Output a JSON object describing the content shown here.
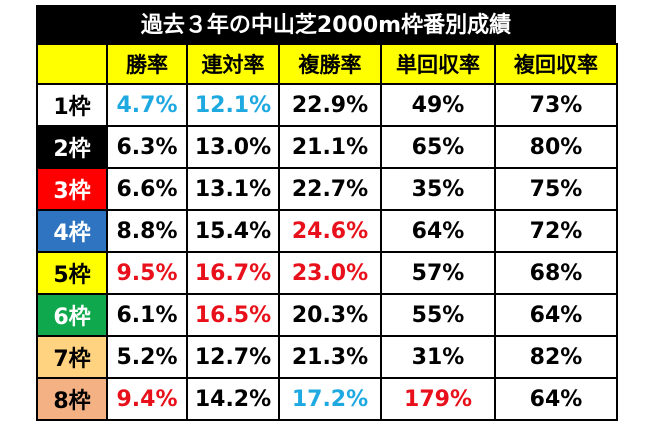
{
  "title": "過去３年の中山芝2000m枠番別成績",
  "headers": [
    "",
    "勝率",
    "連対率",
    "複勝率",
    "単回収率",
    "複回収率"
  ],
  "colors": {
    "blue": "#1fa9e1",
    "red": "#e8101a"
  },
  "rows": [
    {
      "label": "1枠",
      "bg": "#ffffff",
      "fg": "#000000",
      "cells": [
        [
          "4.7%",
          "blue"
        ],
        [
          "12.1%",
          "blue"
        ],
        [
          "22.9%",
          ""
        ],
        [
          "49%",
          ""
        ],
        [
          "73%",
          ""
        ]
      ]
    },
    {
      "label": "2枠",
      "bg": "#000000",
      "fg": "#ffffff",
      "cells": [
        [
          "6.3%",
          ""
        ],
        [
          "13.0%",
          ""
        ],
        [
          "21.1%",
          ""
        ],
        [
          "65%",
          ""
        ],
        [
          "80%",
          ""
        ]
      ]
    },
    {
      "label": "3枠",
      "bg": "#ff0000",
      "fg": "#ffffff",
      "cells": [
        [
          "6.6%",
          ""
        ],
        [
          "13.1%",
          ""
        ],
        [
          "22.7%",
          ""
        ],
        [
          "35%",
          ""
        ],
        [
          "75%",
          ""
        ]
      ]
    },
    {
      "label": "4枠",
      "bg": "#2e74c0",
      "fg": "#ffffff",
      "cells": [
        [
          "8.8%",
          ""
        ],
        [
          "15.4%",
          ""
        ],
        [
          "24.6%",
          "red"
        ],
        [
          "64%",
          ""
        ],
        [
          "72%",
          ""
        ]
      ]
    },
    {
      "label": "5枠",
      "bg": "#ffff00",
      "fg": "#000000",
      "cells": [
        [
          "9.5%",
          "red"
        ],
        [
          "16.7%",
          "red"
        ],
        [
          "23.0%",
          "red"
        ],
        [
          "57%",
          ""
        ],
        [
          "68%",
          ""
        ]
      ]
    },
    {
      "label": "6枠",
      "bg": "#10a84c",
      "fg": "#ffffff",
      "cells": [
        [
          "6.1%",
          ""
        ],
        [
          "16.5%",
          "red"
        ],
        [
          "20.3%",
          ""
        ],
        [
          "55%",
          ""
        ],
        [
          "64%",
          ""
        ]
      ]
    },
    {
      "label": "7枠",
      "bg": "#ffd37f",
      "fg": "#000000",
      "cells": [
        [
          "5.2%",
          ""
        ],
        [
          "12.7%",
          ""
        ],
        [
          "21.3%",
          ""
        ],
        [
          "31%",
          ""
        ],
        [
          "82%",
          ""
        ]
      ]
    },
    {
      "label": "8枠",
      "bg": "#f4b183",
      "fg": "#000000",
      "cells": [
        [
          "9.4%",
          "red"
        ],
        [
          "14.2%",
          ""
        ],
        [
          "17.2%",
          "blue"
        ],
        [
          "179%",
          "red"
        ],
        [
          "64%",
          ""
        ]
      ]
    }
  ]
}
